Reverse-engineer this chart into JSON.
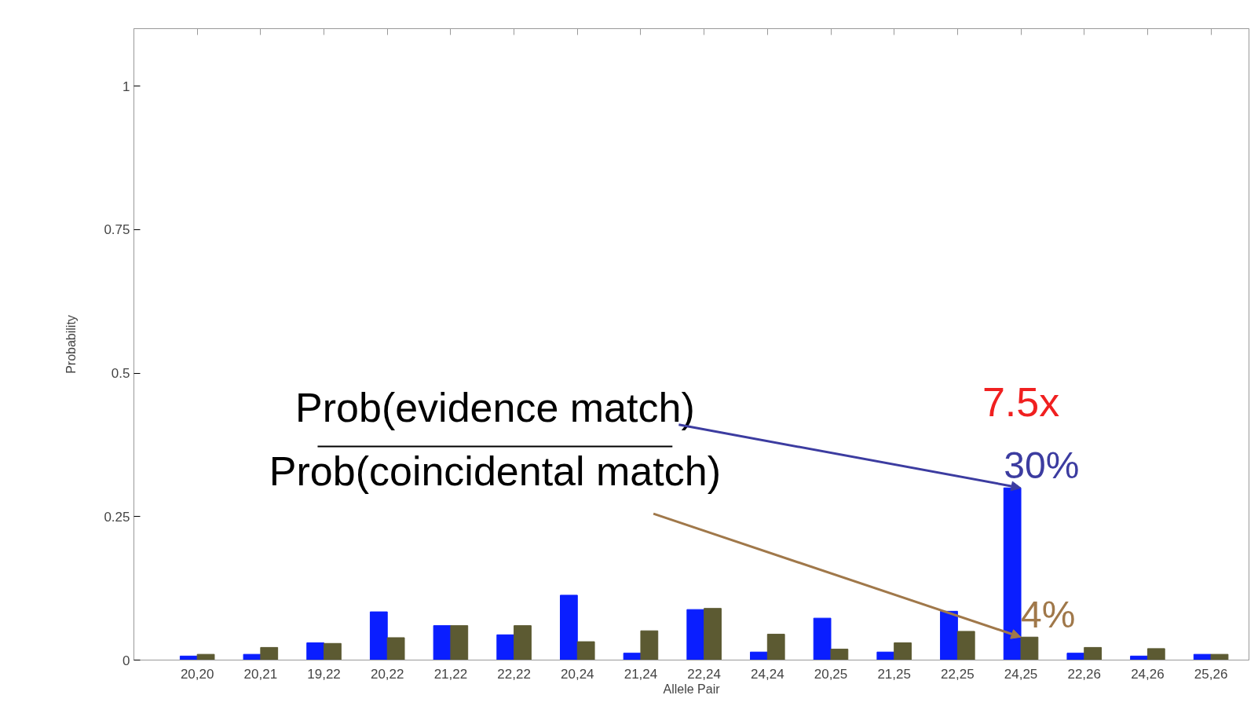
{
  "chart_data": {
    "type": "bar",
    "xlabel": "Allele Pair",
    "ylabel": "Probability",
    "categories": [
      "20,20",
      "20,21",
      "19,22",
      "20,22",
      "21,22",
      "22,22",
      "20,24",
      "21,24",
      "22,24",
      "24,24",
      "20,25",
      "21,25",
      "22,25",
      "24,25",
      "22,26",
      "24,26",
      "25,26"
    ],
    "series": [
      {
        "color": "#0a1eff",
        "values": [
          0.007,
          0.01,
          0.03,
          0.084,
          0.06,
          0.044,
          0.113,
          0.012,
          0.088,
          0.014,
          0.073,
          0.014,
          0.085,
          0.3,
          0.012,
          0.007,
          0.01
        ],
        "value_labels": [
          null,
          null,
          null,
          null,
          null,
          null,
          null,
          null,
          null,
          null,
          null,
          null,
          null,
          "30%",
          null,
          null,
          null
        ]
      },
      {
        "color": "#5c5a32",
        "values": [
          0.01,
          0.022,
          0.029,
          0.039,
          0.06,
          0.06,
          0.032,
          0.051,
          0.09,
          0.045,
          0.019,
          0.03,
          0.05,
          0.04,
          0.022,
          0.02,
          0.01
        ],
        "value_labels": [
          null,
          null,
          null,
          null,
          null,
          null,
          null,
          null,
          null,
          null,
          null,
          null,
          null,
          "4%",
          null,
          null,
          null
        ]
      }
    ],
    "ylim": [
      0,
      1.1
    ],
    "yticks": [
      0,
      0.25,
      0.5,
      0.75,
      1
    ],
    "annotations": [
      {
        "text": "Prob(evidence match)",
        "x": "24,25",
        "y": 0.3
      },
      {
        "text": "Prob(coincidental match)",
        "x": "24,25",
        "y": 0.04
      },
      "7.5x"
    ],
    "grid": false
  }
}
